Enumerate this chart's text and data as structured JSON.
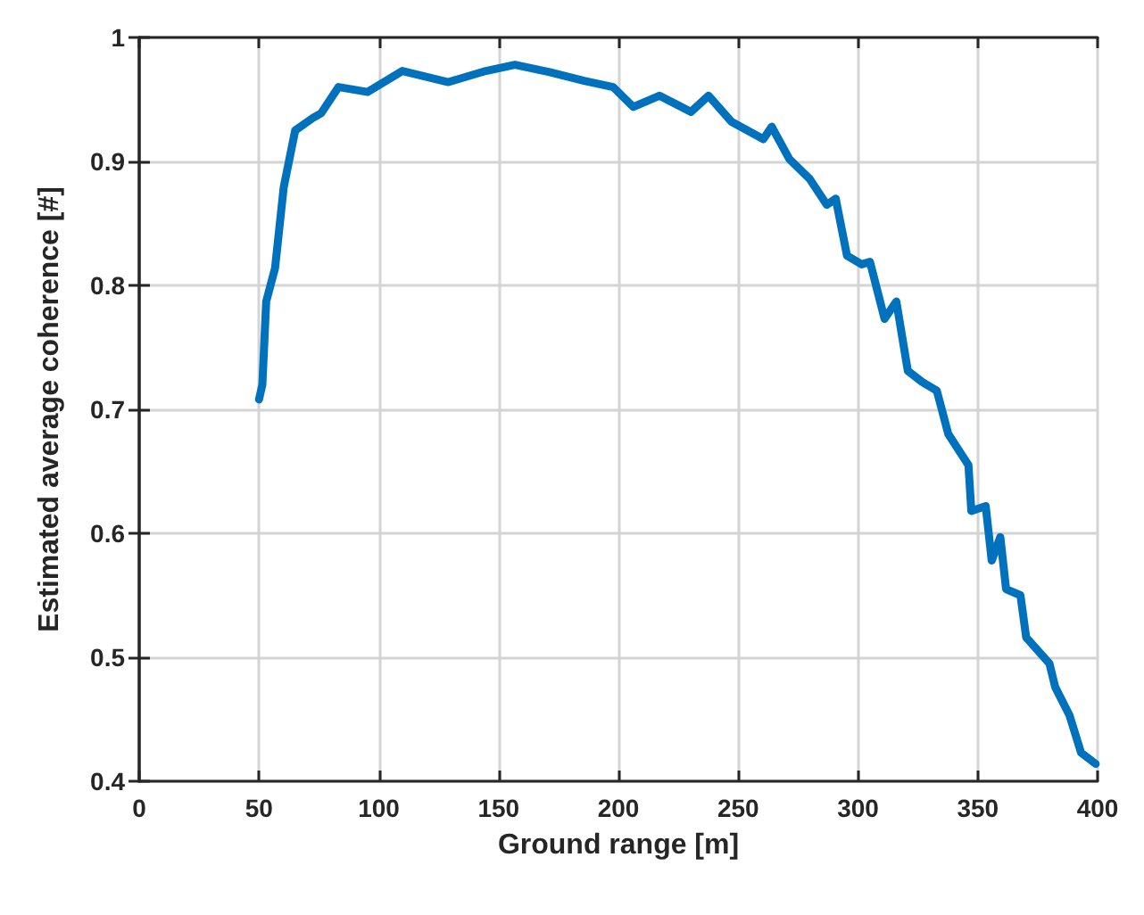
{
  "chart_data": {
    "type": "line",
    "xlabel": "Ground range [m]",
    "ylabel": "Estimated average coherence [#]",
    "x": [
      50,
      51.4,
      53,
      56.7,
      60.3,
      65.1,
      72.4,
      76,
      83.2,
      95.3,
      109.8,
      129,
      144.7,
      156.8,
      171.3,
      185.7,
      197.8,
      206.2,
      217.1,
      230.3,
      237.6,
      247.2,
      260.5,
      264,
      271.3,
      279.8,
      287,
      290.7,
      295.4,
      301.5,
      305,
      311.1,
      316,
      320.8,
      326.8,
      332.9,
      337.7,
      346.1,
      347.3,
      353.3,
      355.8,
      359.4,
      361.8,
      367.8,
      370.2,
      379.9,
      382.3,
      388.3,
      393.1,
      399.2
    ],
    "series": [
      {
        "color": "#0072bd",
        "values": [
          0.708,
          0.72,
          0.787,
          0.814,
          0.879,
          0.925,
          0.935,
          0.939,
          0.96,
          0.956,
          0.973,
          0.964,
          0.973,
          0.978,
          0.972,
          0.965,
          0.96,
          0.944,
          0.953,
          0.94,
          0.953,
          0.932,
          0.918,
          0.928,
          0.902,
          0.886,
          0.865,
          0.87,
          0.824,
          0.817,
          0.819,
          0.773,
          0.787,
          0.731,
          0.722,
          0.715,
          0.68,
          0.655,
          0.618,
          0.622,
          0.578,
          0.597,
          0.555,
          0.55,
          0.516,
          0.495,
          0.476,
          0.453,
          0.423,
          0.414
        ]
      }
    ],
    "xlim": [
      0,
      400
    ],
    "xticks": [
      0,
      50,
      100,
      150,
      200,
      250,
      300,
      350,
      400
    ],
    "ylim": [
      0.4,
      1
    ],
    "yticks": [
      0.4,
      0.5,
      0.6,
      0.7,
      0.8,
      0.9,
      1
    ],
    "grid": true,
    "marker": "none",
    "line_style": "solid"
  }
}
